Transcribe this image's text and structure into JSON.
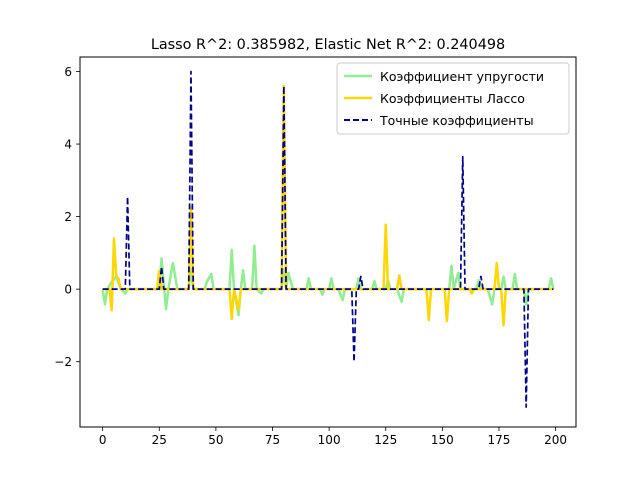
{
  "chart_data": {
    "type": "line",
    "title": "Lasso R^2: 0.385982, Elastic Net R^2: 0.240498",
    "xlabel": "",
    "ylabel": "",
    "xlim": [
      -10,
      209
    ],
    "ylim": [
      -3.8,
      6.4
    ],
    "xticks": [
      0,
      25,
      50,
      75,
      100,
      125,
      150,
      175,
      200
    ],
    "yticks": [
      -2,
      0,
      2,
      4,
      6
    ],
    "grid": false,
    "legend_position": "top-right",
    "series": [
      {
        "name": "Коэффициент упругости",
        "color": "#90ee90",
        "style": "solid",
        "points": [
          [
            0,
            0
          ],
          [
            1,
            -0.42
          ],
          [
            2,
            0
          ],
          [
            4,
            0.2
          ],
          [
            6,
            0.35
          ],
          [
            8,
            0
          ],
          [
            10,
            -0.12
          ],
          [
            11,
            0
          ],
          [
            25,
            0
          ],
          [
            26,
            0.85
          ],
          [
            28,
            -0.55
          ],
          [
            29,
            0
          ],
          [
            31,
            0.72
          ],
          [
            33,
            0
          ],
          [
            38,
            0
          ],
          [
            39,
            0.55
          ],
          [
            40,
            0
          ],
          [
            45,
            0
          ],
          [
            46,
            0.2
          ],
          [
            48,
            0.42
          ],
          [
            49,
            0
          ],
          [
            56,
            0
          ],
          [
            57,
            1.08
          ],
          [
            58,
            0
          ],
          [
            60,
            -0.72
          ],
          [
            61,
            0
          ],
          [
            62,
            0.52
          ],
          [
            63,
            0
          ],
          [
            66,
            0
          ],
          [
            67,
            1.2
          ],
          [
            68,
            0
          ],
          [
            70,
            -0.12
          ],
          [
            71,
            0
          ],
          [
            79,
            0
          ],
          [
            80,
            0.55
          ],
          [
            81,
            0
          ],
          [
            82,
            0.45
          ],
          [
            84,
            0
          ],
          [
            90,
            0
          ],
          [
            91,
            0.3
          ],
          [
            92,
            0
          ],
          [
            96,
            0
          ],
          [
            97,
            -0.15
          ],
          [
            98,
            0
          ],
          [
            100,
            0
          ],
          [
            101,
            0.3
          ],
          [
            102,
            0
          ],
          [
            104,
            0
          ],
          [
            106,
            -0.3
          ],
          [
            107,
            0
          ],
          [
            112,
            0
          ],
          [
            113,
            0.3
          ],
          [
            114,
            0
          ],
          [
            119,
            0
          ],
          [
            120,
            0.22
          ],
          [
            121,
            0
          ],
          [
            125,
            0
          ],
          [
            126,
            0.25
          ],
          [
            127,
            0
          ],
          [
            130,
            0
          ],
          [
            132,
            -0.35
          ],
          [
            133,
            0
          ],
          [
            153,
            0
          ],
          [
            154,
            0.65
          ],
          [
            155,
            0
          ],
          [
            157,
            0.45
          ],
          [
            158,
            0
          ],
          [
            165,
            0
          ],
          [
            166,
            0.25
          ],
          [
            167,
            0
          ],
          [
            170,
            0
          ],
          [
            172,
            -0.42
          ],
          [
            173,
            0
          ],
          [
            176,
            0
          ],
          [
            177,
            0.35
          ],
          [
            178,
            0
          ],
          [
            181,
            0
          ],
          [
            182,
            0.42
          ],
          [
            183,
            0
          ],
          [
            186,
            0
          ],
          [
            187,
            -0.42
          ],
          [
            188,
            0
          ],
          [
            197,
            0
          ],
          [
            198,
            0.3
          ],
          [
            199,
            0
          ]
        ]
      },
      {
        "name": "Коэффициенты Лассо",
        "color": "#ffd700",
        "style": "solid",
        "points": [
          [
            0,
            0
          ],
          [
            3,
            0
          ],
          [
            4,
            -0.58
          ],
          [
            5,
            1.4
          ],
          [
            6,
            0.35
          ],
          [
            7,
            0.3
          ],
          [
            8,
            0
          ],
          [
            24,
            0
          ],
          [
            25,
            0.5
          ],
          [
            26,
            0
          ],
          [
            38,
            0
          ],
          [
            39,
            2.25
          ],
          [
            40,
            0
          ],
          [
            56,
            0
          ],
          [
            57,
            -0.82
          ],
          [
            58,
            0
          ],
          [
            60,
            -0.55
          ],
          [
            61,
            0
          ],
          [
            79,
            0
          ],
          [
            80,
            5.6
          ],
          [
            81,
            0
          ],
          [
            124,
            0
          ],
          [
            125,
            1.78
          ],
          [
            126,
            0
          ],
          [
            130,
            0
          ],
          [
            131,
            0.38
          ],
          [
            132,
            0
          ],
          [
            143,
            0
          ],
          [
            144,
            -0.85
          ],
          [
            145,
            0
          ],
          [
            151,
            0
          ],
          [
            152,
            -0.88
          ],
          [
            153,
            0
          ],
          [
            162,
            0
          ],
          [
            163,
            -0.12
          ],
          [
            164,
            0
          ],
          [
            173,
            0
          ],
          [
            174,
            0.72
          ],
          [
            175,
            0
          ],
          [
            176,
            0
          ],
          [
            177,
            -1.0
          ],
          [
            178,
            0
          ],
          [
            199,
            0
          ]
        ]
      },
      {
        "name": "Точные коэффициенты",
        "color": "#00008b",
        "style": "dashed",
        "points": [
          [
            0,
            0
          ],
          [
            10,
            0
          ],
          [
            11,
            2.55
          ],
          [
            12,
            0
          ],
          [
            25,
            0
          ],
          [
            26,
            0.62
          ],
          [
            27,
            0
          ],
          [
            38,
            0
          ],
          [
            39,
            6.0
          ],
          [
            40,
            0
          ],
          [
            79,
            0
          ],
          [
            80,
            5.6
          ],
          [
            81,
            0
          ],
          [
            110,
            0
          ],
          [
            111,
            -2.0
          ],
          [
            112,
            0
          ],
          [
            113,
            0
          ],
          [
            114,
            0.35
          ],
          [
            115,
            0
          ],
          [
            158,
            0
          ],
          [
            159,
            3.65
          ],
          [
            160,
            0
          ],
          [
            166,
            0
          ],
          [
            167,
            0.35
          ],
          [
            168,
            0
          ],
          [
            186,
            0
          ],
          [
            187,
            -3.25
          ],
          [
            188,
            0
          ],
          [
            199,
            0
          ]
        ]
      }
    ]
  }
}
